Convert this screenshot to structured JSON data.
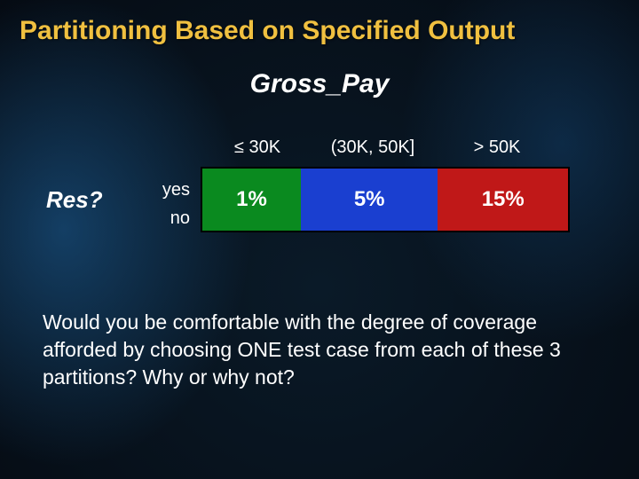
{
  "title": "Partitioning Based on Specified Output",
  "column_axis_label": "Gross_Pay",
  "row_axis_label": "Res?",
  "columns": {
    "c1": "≤ 30K",
    "c2": "(30K, 50K]",
    "c3": "> 50K"
  },
  "rows": {
    "r1": "yes",
    "r2": "no"
  },
  "cells": {
    "v1": "1%",
    "v2": "5%",
    "v3": "15%"
  },
  "cell_colors": {
    "v1": "#0a8a1f",
    "v2": "#1a3fd0",
    "v3": "#c01818"
  },
  "question": "Would you be comfortable with the degree of coverage afforded by choosing ONE test case from each of these 3 partitions?   Why or why not?",
  "style": {
    "title_color": "#f0c040",
    "text_color": "#ffffff",
    "title_fontsize": 30,
    "body_fontsize": 23,
    "header_fontsize": 20,
    "cell_fontsize": 24,
    "table_border_color": "#000000"
  }
}
